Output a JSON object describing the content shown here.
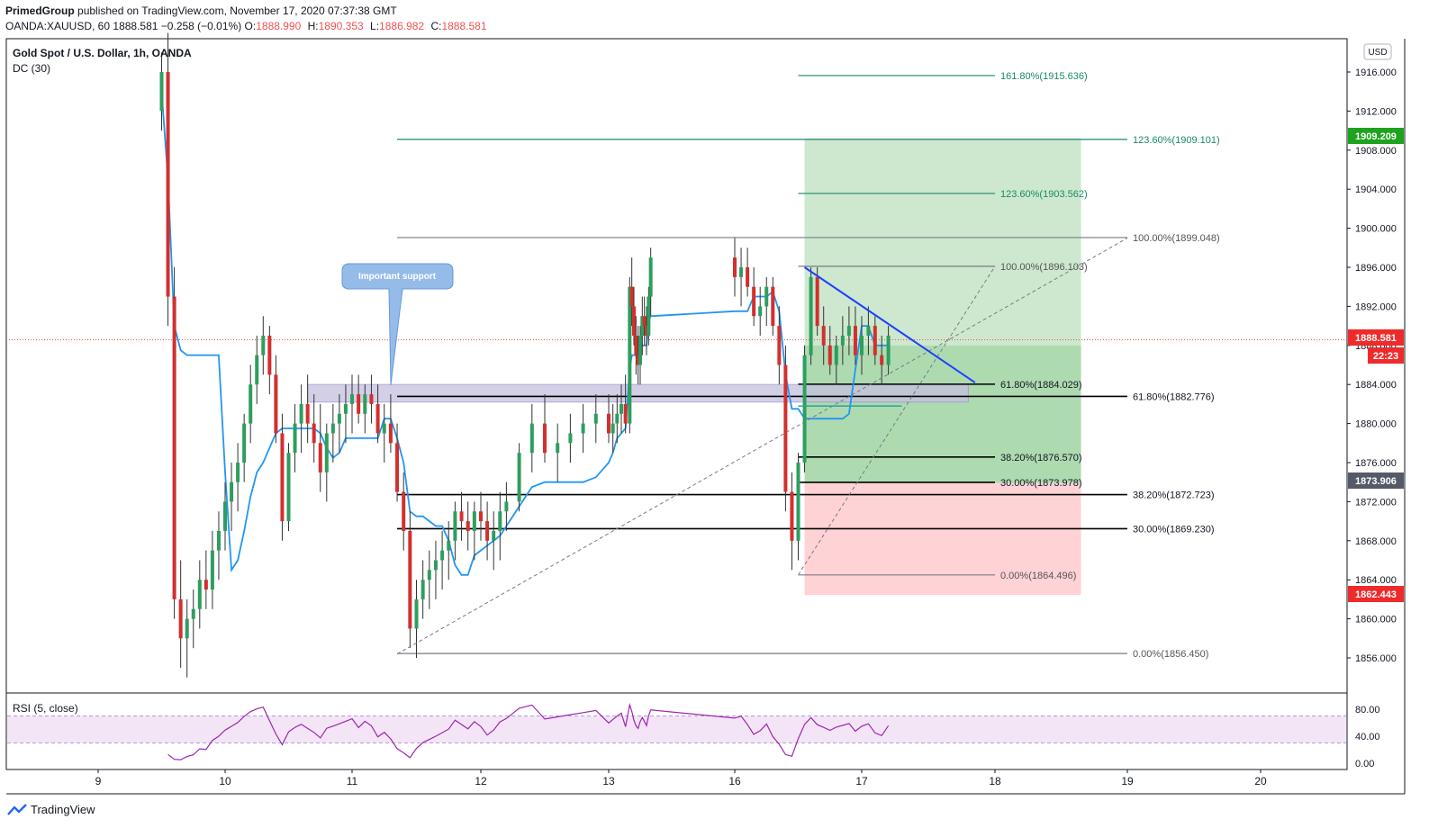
{
  "header": {
    "publisher": "PrimedGroup",
    "published_text": "published on TradingView.com, November 17, 2020 07:37:38 GMT",
    "symbol": "OANDA:XAUUSD, 60",
    "last": "1888.581",
    "change": "−0.258 (−0.01%)",
    "open_label": "O:",
    "open": "1888.990",
    "high_label": "H:",
    "high": "1890.353",
    "low_label": "L:",
    "low": "1886.982",
    "close_label": "C:",
    "close": "1888.581"
  },
  "legend": {
    "title": "Gold Spot / U.S. Dollar, 1h, OANDA",
    "indicator": "DC (30)",
    "rsi_label": "RSI (5, close)",
    "currency": "USD"
  },
  "colors": {
    "up": "#26a69a",
    "down": "#ef5350",
    "donchian": "#2196f3",
    "fib_green": "#2e8b57",
    "fib_black": "#000000",
    "fib_gray": "#787b86",
    "profit_zone": "#c8e6c9",
    "profit_zone_dark": "#a5d6a7",
    "loss_zone": "#ffcdd2",
    "support_zone": "#c5c0e0",
    "trendline": "#1e40ff",
    "rsi": "#9c27b0",
    "rsi_band": "#f3e5f5"
  },
  "annotation": {
    "text": "Important support"
  },
  "footer": {
    "brand": "TradingView"
  },
  "chart_data": {
    "type": "candlestick",
    "title": "Gold Spot / U.S. Dollar, 1h, OANDA",
    "y_axis": {
      "ticks": [
        1856,
        1860,
        1864,
        1868,
        1872,
        1876,
        1880,
        1884,
        1888,
        1892,
        1896,
        1900,
        1904,
        1908,
        1912,
        1916
      ]
    },
    "x_axis": {
      "ticks": [
        "9",
        "10",
        "11",
        "12",
        "13",
        "16",
        "17",
        "18",
        "19",
        "20"
      ]
    },
    "price_tags": [
      {
        "value": "1909.209",
        "color": "#1ea31e"
      },
      {
        "value": "1888.581",
        "color": "#ef2a2a"
      },
      {
        "value": "22:23",
        "color": "#ef2a2a"
      },
      {
        "value": "1873.906",
        "color": "#555b66"
      },
      {
        "value": "1862.443",
        "color": "#ef2a2a"
      }
    ],
    "fib_levels": [
      {
        "label": "161.80%(1915.636)",
        "price": 1915.636,
        "color": "green",
        "x0": 16.5,
        "x1": 18
      },
      {
        "label": "123.60%(1909.101)",
        "price": 1909.101,
        "color": "green",
        "x0": 11.35,
        "x1": 19
      },
      {
        "label": "123.60%(1903.562)",
        "price": 1903.562,
        "color": "green",
        "x0": 16.5,
        "x1": 18
      },
      {
        "label": "100.00%(1899.048)",
        "price": 1899.048,
        "color": "gray",
        "x0": 11.35,
        "x1": 19
      },
      {
        "label": "100.00%(1896.103)",
        "price": 1896.103,
        "color": "gray",
        "x0": 16.5,
        "x1": 18
      },
      {
        "label": "61.80%(1884.029)",
        "price": 1884.029,
        "color": "black",
        "x0": 16.5,
        "x1": 18
      },
      {
        "label": "61.80%(1882.776)",
        "price": 1882.776,
        "color": "black",
        "x0": 11.35,
        "x1": 19
      },
      {
        "label": "38.20%(1876.570)",
        "price": 1876.57,
        "color": "black",
        "x0": 16.5,
        "x1": 18
      },
      {
        "label": "30.00%(1873.978)",
        "price": 1873.978,
        "color": "black",
        "x0": 16.5,
        "x1": 18
      },
      {
        "label": "38.20%(1872.723)",
        "price": 1872.723,
        "color": "black",
        "x0": 11.35,
        "x1": 19
      },
      {
        "label": "30.00%(1869.230)",
        "price": 1869.23,
        "color": "black",
        "x0": 11.35,
        "x1": 19
      },
      {
        "label": "0.00%(1864.496)",
        "price": 1864.496,
        "color": "gray",
        "x0": 16.5,
        "x1": 18
      },
      {
        "label": "0.00%(1856.450)",
        "price": 1856.45,
        "color": "gray",
        "x0": 11.35,
        "x1": 19
      }
    ],
    "position": {
      "entry": 1888.0,
      "target": 1909.209,
      "stop": 1862.443,
      "x0": 16.55,
      "x1": 18.65
    },
    "support_zone": {
      "top": 1884.0,
      "bottom": 1882.2,
      "x0": 10.65,
      "x1": 17.8
    },
    "trendline": [
      [
        16.55,
        1896.0
      ],
      [
        17.85,
        1884.2
      ]
    ],
    "diag_lines": [
      [
        [
          11.35,
          1856.4
        ],
        [
          19.0,
          1899.0
        ]
      ],
      [
        [
          16.5,
          1864.5
        ],
        [
          18.0,
          1896.1
        ]
      ]
    ],
    "candles": [
      [
        9.5,
        1912,
        1918,
        1910,
        1916
      ],
      [
        9.55,
        1916,
        1920,
        1890,
        1893
      ],
      [
        9.6,
        1893,
        1896,
        1860,
        1862
      ],
      [
        9.65,
        1862,
        1866,
        1855,
        1858
      ],
      [
        9.7,
        1858,
        1862,
        1854,
        1860
      ],
      [
        9.75,
        1860,
        1863,
        1857,
        1861
      ],
      [
        9.8,
        1861,
        1866,
        1859,
        1864
      ],
      [
        9.85,
        1864,
        1867,
        1861,
        1863
      ],
      [
        9.9,
        1863,
        1869,
        1861,
        1867
      ],
      [
        9.95,
        1867,
        1871,
        1864,
        1869
      ],
      [
        10.0,
        1869,
        1874,
        1867,
        1872
      ],
      [
        10.05,
        1872,
        1876,
        1869,
        1874
      ],
      [
        10.1,
        1874,
        1878,
        1871,
        1876
      ],
      [
        10.15,
        1876,
        1881,
        1874,
        1880
      ],
      [
        10.2,
        1880,
        1886,
        1878,
        1884
      ],
      [
        10.25,
        1884,
        1889,
        1882,
        1887
      ],
      [
        10.3,
        1887,
        1891,
        1885,
        1889
      ],
      [
        10.35,
        1889,
        1890,
        1883,
        1885
      ],
      [
        10.4,
        1885,
        1887,
        1878,
        1879
      ],
      [
        10.45,
        1879,
        1881,
        1868,
        1870
      ],
      [
        10.5,
        1870,
        1878,
        1869,
        1877
      ],
      [
        10.55,
        1877,
        1882,
        1875,
        1880
      ],
      [
        10.6,
        1880,
        1884,
        1877,
        1882
      ],
      [
        10.65,
        1882,
        1885,
        1878,
        1880
      ],
      [
        10.7,
        1880,
        1883,
        1876,
        1878
      ],
      [
        10.75,
        1878,
        1882,
        1873,
        1875
      ],
      [
        10.8,
        1875,
        1880,
        1872,
        1879
      ],
      [
        10.85,
        1879,
        1882,
        1876,
        1880
      ],
      [
        10.9,
        1880,
        1883,
        1877,
        1881
      ],
      [
        10.95,
        1881,
        1884,
        1878,
        1882
      ],
      [
        11.0,
        1882,
        1885,
        1879,
        1883
      ],
      [
        11.05,
        1883,
        1885,
        1880,
        1881
      ],
      [
        11.1,
        1881,
        1884,
        1879,
        1883
      ],
      [
        11.15,
        1883,
        1885,
        1880,
        1882
      ],
      [
        11.2,
        1882,
        1884,
        1878,
        1879
      ],
      [
        11.25,
        1879,
        1882,
        1876,
        1880
      ],
      [
        11.3,
        1880,
        1883,
        1877,
        1878
      ],
      [
        11.35,
        1878,
        1880,
        1872,
        1873
      ],
      [
        11.4,
        1873,
        1875,
        1867,
        1869
      ],
      [
        11.45,
        1869,
        1871,
        1857,
        1859
      ],
      [
        11.5,
        1859,
        1864,
        1856,
        1862
      ],
      [
        11.55,
        1862,
        1866,
        1860,
        1864
      ],
      [
        11.6,
        1864,
        1867,
        1861,
        1865
      ],
      [
        11.65,
        1865,
        1868,
        1862,
        1866
      ],
      [
        11.7,
        1866,
        1869,
        1863,
        1867
      ],
      [
        11.75,
        1867,
        1870,
        1864,
        1868
      ],
      [
        11.8,
        1868,
        1872,
        1866,
        1871
      ],
      [
        11.85,
        1871,
        1873,
        1868,
        1870
      ],
      [
        11.9,
        1870,
        1872,
        1867,
        1869
      ],
      [
        11.95,
        1869,
        1872,
        1866,
        1871
      ],
      [
        12.0,
        1871,
        1873,
        1868,
        1870
      ],
      [
        12.05,
        1870,
        1872,
        1866,
        1868
      ],
      [
        12.1,
        1868,
        1871,
        1865,
        1869
      ],
      [
        12.15,
        1869,
        1873,
        1866,
        1871
      ],
      [
        12.2,
        1871,
        1874,
        1869,
        1872
      ],
      [
        12.3,
        1872,
        1878,
        1871,
        1877
      ],
      [
        12.4,
        1877,
        1882,
        1875,
        1880
      ],
      [
        12.5,
        1880,
        1883,
        1876,
        1877
      ],
      [
        12.6,
        1877,
        1880,
        1874,
        1878
      ],
      [
        12.7,
        1878,
        1881,
        1876,
        1879
      ],
      [
        12.8,
        1879,
        1882,
        1877,
        1880
      ],
      [
        12.9,
        1880,
        1883,
        1878,
        1881
      ],
      [
        13.0,
        1881,
        1883,
        1878,
        1879
      ],
      [
        13.1,
        1879,
        1882,
        1877,
        1880
      ],
      [
        13.2,
        1880,
        1883,
        1878,
        1881
      ],
      [
        13.3,
        1881,
        1884,
        1879,
        1882
      ],
      [
        13.4,
        1882,
        1885,
        1879,
        1880
      ],
      [
        13.5,
        1880,
        1895,
        1879,
        1894
      ],
      [
        13.55,
        1894,
        1897,
        1890,
        1892
      ],
      [
        13.6,
        1892,
        1894,
        1888,
        1889
      ],
      [
        13.65,
        1889,
        1891,
        1885,
        1887
      ],
      [
        13.7,
        1887,
        1890,
        1884,
        1886
      ],
      [
        13.75,
        1886,
        1890,
        1884,
        1889
      ],
      [
        13.8,
        1889,
        1893,
        1887,
        1891
      ],
      [
        13.85,
        1891,
        1893,
        1888,
        1890
      ],
      [
        13.9,
        1890,
        1892,
        1887,
        1889
      ],
      [
        13.95,
        1889,
        1894,
        1888,
        1893
      ],
      [
        14.0,
        1893,
        1898,
        1891,
        1897
      ],
      [
        16.0,
        1897,
        1899,
        1893,
        1895
      ],
      [
        16.05,
        1895,
        1898,
        1892,
        1896
      ],
      [
        16.1,
        1896,
        1898,
        1893,
        1894
      ],
      [
        16.15,
        1894,
        1896,
        1890,
        1891
      ],
      [
        16.2,
        1891,
        1894,
        1889,
        1892
      ],
      [
        16.25,
        1892,
        1895,
        1890,
        1894
      ],
      [
        16.3,
        1894,
        1895,
        1889,
        1890
      ],
      [
        16.35,
        1890,
        1892,
        1884,
        1886
      ],
      [
        16.4,
        1886,
        1888,
        1871,
        1873
      ],
      [
        16.45,
        1873,
        1875,
        1865,
        1868
      ],
      [
        16.5,
        1868,
        1877,
        1866,
        1876
      ],
      [
        16.55,
        1876,
        1888,
        1875,
        1887
      ],
      [
        16.6,
        1887,
        1896,
        1886,
        1895
      ],
      [
        16.65,
        1895,
        1896,
        1889,
        1890
      ],
      [
        16.7,
        1890,
        1892,
        1886,
        1888
      ],
      [
        16.75,
        1888,
        1890,
        1885,
        1886
      ],
      [
        16.8,
        1886,
        1889,
        1884,
        1888
      ],
      [
        16.85,
        1888,
        1891,
        1886,
        1889
      ],
      [
        16.9,
        1889,
        1892,
        1887,
        1890
      ],
      [
        16.95,
        1890,
        1892,
        1886,
        1887
      ],
      [
        17.0,
        1887,
        1891,
        1885,
        1889
      ],
      [
        17.05,
        1889,
        1892,
        1887,
        1890
      ],
      [
        17.1,
        1890,
        1891,
        1886,
        1887
      ],
      [
        17.15,
        1887,
        1889,
        1884,
        1886
      ],
      [
        17.2,
        1886,
        1890,
        1885,
        1889
      ]
    ],
    "rsi": {
      "ticks": [
        80,
        40,
        0
      ],
      "upper": 70,
      "lower": 30
    }
  }
}
